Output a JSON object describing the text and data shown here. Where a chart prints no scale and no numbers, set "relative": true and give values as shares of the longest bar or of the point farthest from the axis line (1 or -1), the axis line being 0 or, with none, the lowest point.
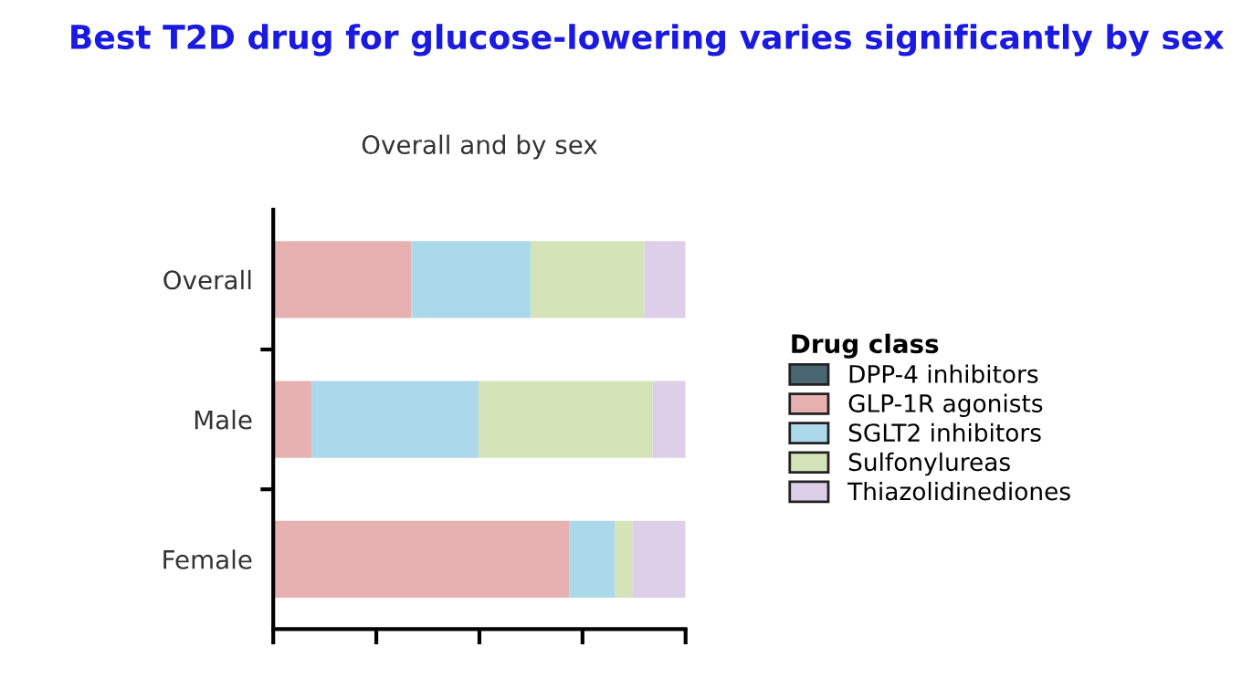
{
  "chart_data": {
    "type": "bar",
    "orientation": "horizontal",
    "stacked": true,
    "relative": true,
    "title": "Best T2D drug for glucose-lowering varies significantly by sex",
    "subtitle": "Overall and by sex",
    "legend_title": "Drug class",
    "legend": "right",
    "grid": false,
    "tick_labels": "y",
    "categories": [
      "Overall",
      "Male",
      "Female"
    ],
    "series": [
      {
        "name": "DPP-4 inhibitors",
        "color": "#4a6673",
        "values": [
          0,
          0,
          0
        ]
      },
      {
        "name": "GLP-1R agonists",
        "color": "#e6b1b0",
        "values": [
          0.335,
          0.093,
          0.718
        ]
      },
      {
        "name": "SGLT2 inhibitors",
        "color": "#acd9ea",
        "values": [
          0.289,
          0.405,
          0.111
        ]
      },
      {
        "name": "Sulfonylureas",
        "color": "#d4e3b8",
        "values": [
          0.276,
          0.422,
          0.042
        ]
      },
      {
        "name": "Thiazolidinediones",
        "color": "#dccfe7",
        "values": [
          0.1,
          0.08,
          0.129
        ]
      }
    ]
  }
}
